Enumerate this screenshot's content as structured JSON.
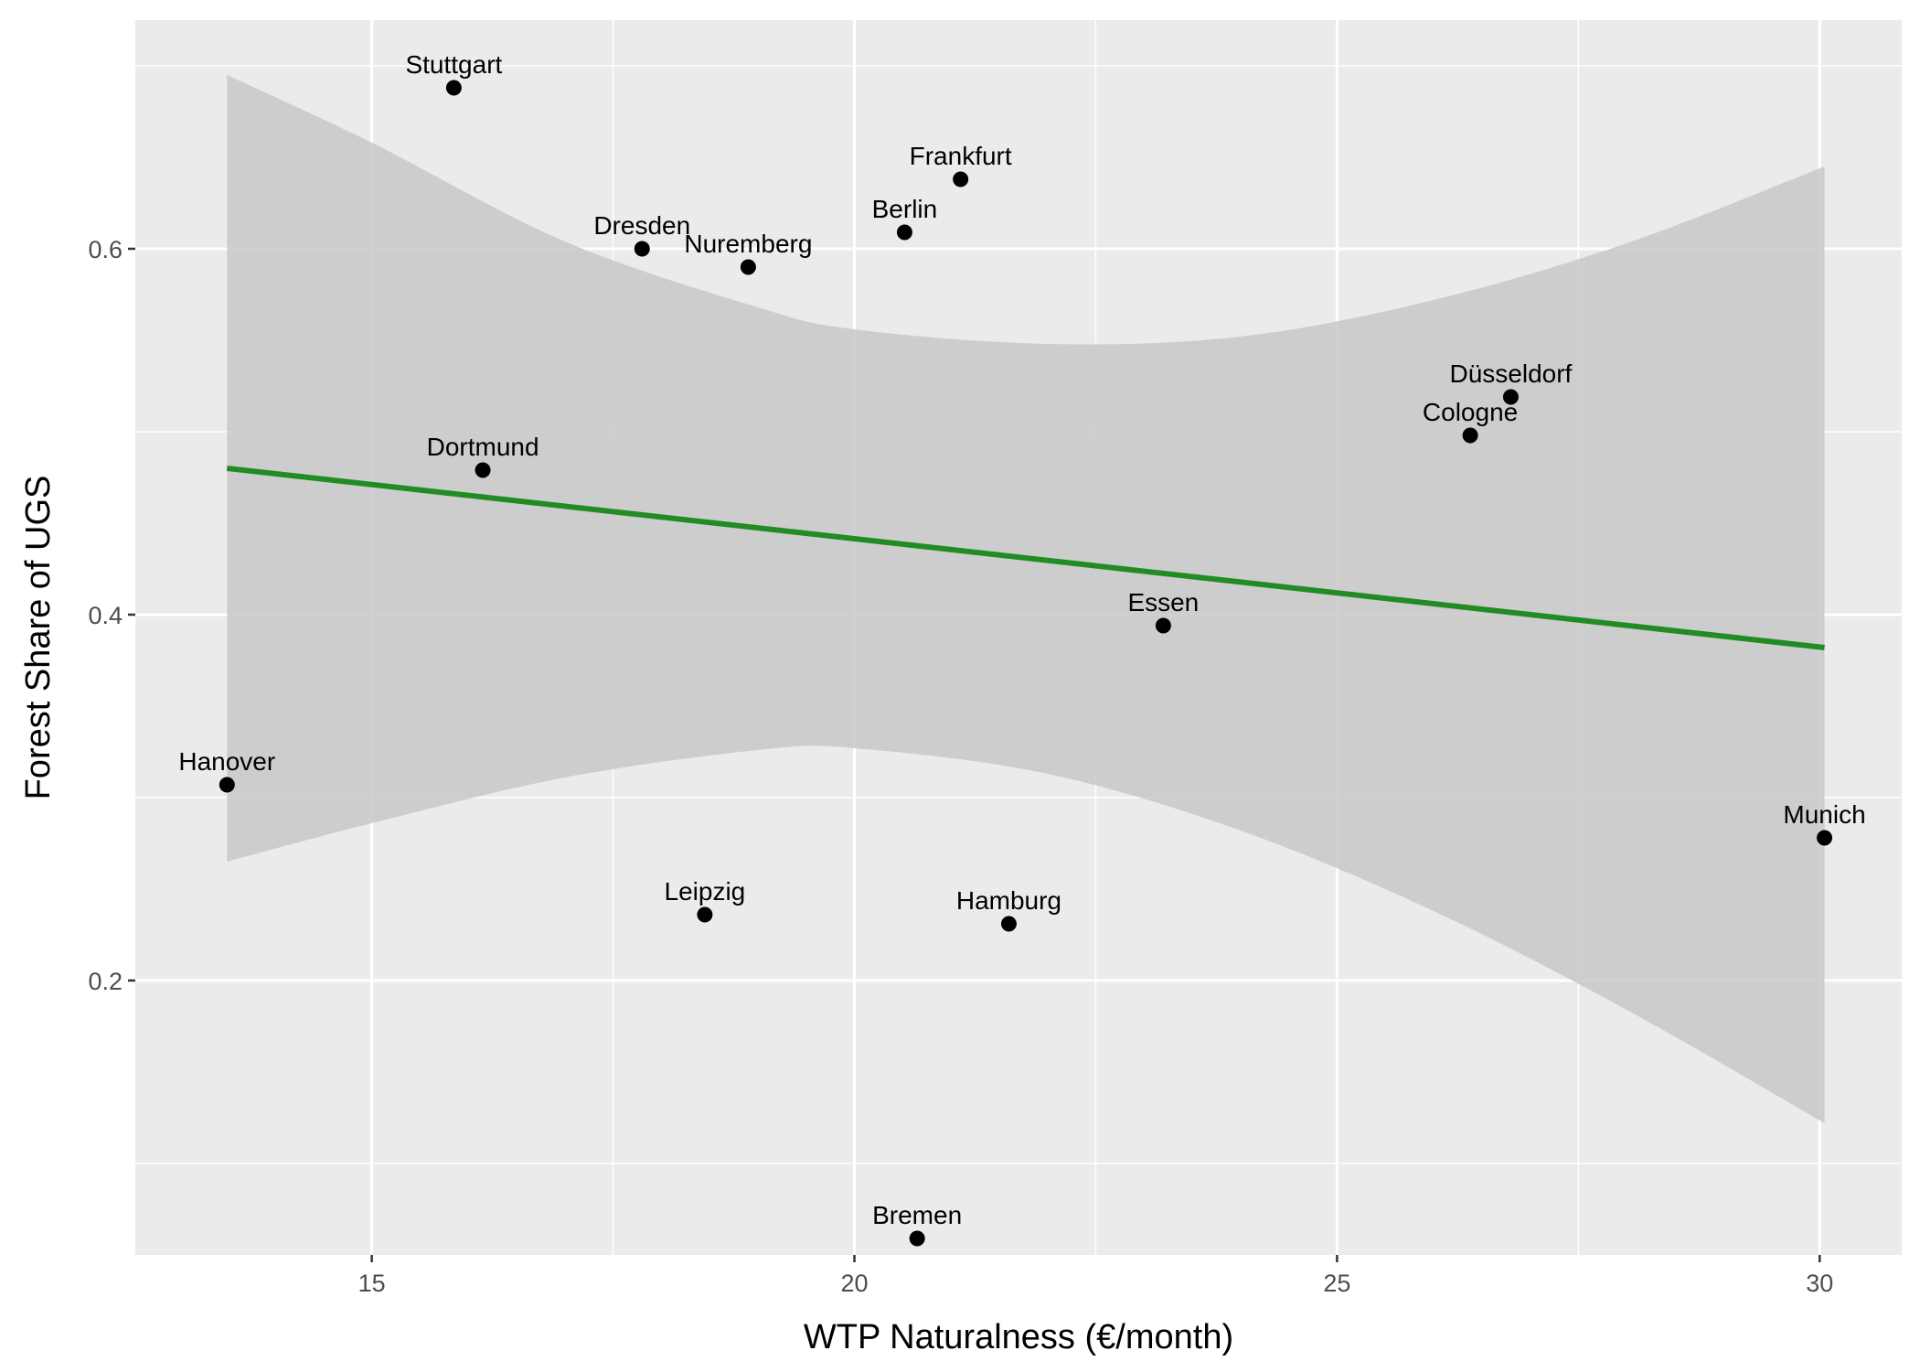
{
  "chart_data": {
    "type": "scatter",
    "title": "",
    "xlabel": "WTP Naturalness (€/month)",
    "ylabel": "Forest Share of UGS",
    "xlim": [
      12.55,
      30.85
    ],
    "ylim": [
      0.05,
      0.725
    ],
    "x_ticks": [
      15,
      20,
      25,
      30
    ],
    "x_tick_labels": [
      "15",
      "20",
      "25",
      "30"
    ],
    "y_ticks": [
      0.2,
      0.4,
      0.6
    ],
    "y_tick_labels": [
      "0.2",
      "0.4",
      "0.6"
    ],
    "grid": true,
    "points": [
      {
        "label": "Stuttgart",
        "x": 15.85,
        "y": 0.688
      },
      {
        "label": "Frankfurt",
        "x": 21.1,
        "y": 0.638
      },
      {
        "label": "Berlin",
        "x": 20.52,
        "y": 0.609
      },
      {
        "label": "Dresden",
        "x": 17.8,
        "y": 0.6
      },
      {
        "label": "Nuremberg",
        "x": 18.9,
        "y": 0.59
      },
      {
        "label": "Düsseldorf",
        "x": 26.8,
        "y": 0.519
      },
      {
        "label": "Cologne",
        "x": 26.38,
        "y": 0.498
      },
      {
        "label": "Dortmund",
        "x": 16.15,
        "y": 0.479
      },
      {
        "label": "Essen",
        "x": 23.2,
        "y": 0.394
      },
      {
        "label": "Hanover",
        "x": 13.5,
        "y": 0.307
      },
      {
        "label": "Munich",
        "x": 30.05,
        "y": 0.278
      },
      {
        "label": "Leipzig",
        "x": 18.45,
        "y": 0.236
      },
      {
        "label": "Hamburg",
        "x": 21.6,
        "y": 0.231
      },
      {
        "label": "Bremen",
        "x": 20.65,
        "y": 0.059
      }
    ],
    "trend_line": {
      "x": [
        13.5,
        30.05
      ],
      "y": [
        0.48,
        0.382
      ],
      "color": "#228B22"
    },
    "confidence_band": {
      "color": "#c8c8c8",
      "x": [
        13.5,
        15.0,
        17.0,
        19.0,
        20.0,
        22.0,
        24.0,
        26.0,
        28.0,
        30.05
      ],
      "lower": [
        0.265,
        0.286,
        0.311,
        0.326,
        0.327,
        0.313,
        0.282,
        0.238,
        0.184,
        0.122
      ],
      "upper": [
        0.695,
        0.658,
        0.604,
        0.568,
        0.556,
        0.548,
        0.552,
        0.572,
        0.603,
        0.645
      ]
    },
    "colors": {
      "panel_background": "#ebebeb",
      "grid": "#ffffff",
      "point": "#000000"
    }
  }
}
